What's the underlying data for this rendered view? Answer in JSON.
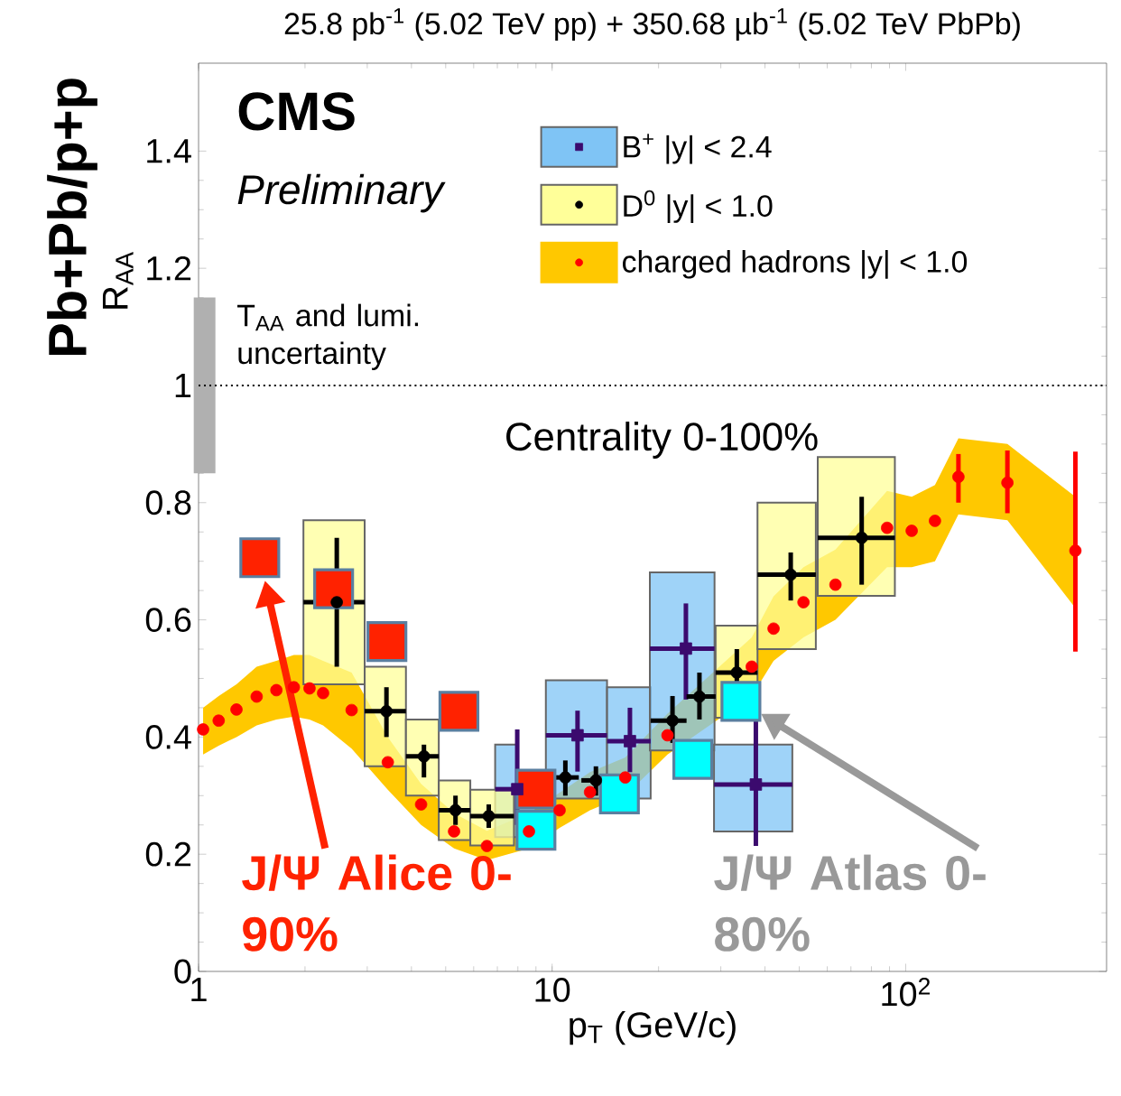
{
  "chart_data": {
    "type": "scatter",
    "title": "25.8 pb$^{-1}$ (5.02 TeV pp) + 350.68 µb$^{-1}$ (5.02 TeV PbPb)",
    "xlabel": "p$_{T}$ (GeV/c)",
    "ylabel": "R$_{AA}$",
    "annotations": [
      "CMS",
      "Preliminary",
      "Centrality 0-100%",
      "Pb+Pb/p+p",
      "T$_{AA}$ and lumi. uncertainty"
    ],
    "log": "x",
    "xlim": [
      1,
      370
    ],
    "ylim": [
      0,
      1.55
    ],
    "xticks": [
      1,
      10,
      {
        "value": 100,
        "label": "10$^{2}$"
      }
    ],
    "yticks": [
      0,
      0.2,
      0.4,
      0.6,
      0.8,
      1,
      1.2,
      1.4
    ],
    "legend": "top",
    "ref_lines": [
      {
        "axis": "y",
        "value": 1,
        "line_style": "dotted"
      }
    ],
    "series": [
      {
        "type": "bar",
        "color": "#b0b0b0",
        "x": [
          1.04
        ],
        "base": [
          0.85
        ],
        "values": [
          0.3
        ]
      },
      {
        "type": "bar",
        "color": "#7fc4f5",
        "x": [
          7.97,
          11.8,
          16.6,
          23.9,
          37.7
        ],
        "base": [
          0.229,
          0.295,
          0.295,
          0.377,
          0.239
        ],
        "values": [
          0.158,
          0.202,
          0.19,
          0.304,
          0.148
        ]
      },
      {
        "type": "bar",
        "color": "#ffff99",
        "x": [
          2.46,
          3.4,
          4.34,
          5.33,
          6.62,
          10.9,
          13.3,
          21.9,
          26.1,
          33.3,
          47.3,
          75.1
        ],
        "base": [
          0.49,
          0.35,
          0.3,
          0.224,
          0.215,
          null,
          null,
          null,
          null,
          0.433,
          0.55,
          0.641
        ],
        "values": [
          0.28,
          0.17,
          0.13,
          0.102,
          0.095,
          null,
          null,
          null,
          null,
          0.157,
          0.25,
          0.237
        ]
      },
      {
        "name": "B$^{+}$ |y| < 2.4",
        "marker": "square",
        "color": "#3b0a6e",
        "x": [
          7.97,
          11.8,
          16.6,
          23.9,
          37.7
        ],
        "values": [
          0.311,
          0.403,
          0.393,
          0.551,
          0.319
        ],
        "errors": [
          [
            0.25,
            0.413
          ],
          [
            0.341,
            0.445
          ],
          [
            0.34,
            0.45
          ],
          [
            0.464,
            0.628
          ],
          [
            0.214,
            0.439
          ]
        ],
        "xerrors": [
          [
            6.9,
            7.97
          ],
          [
            9.6,
            14.3
          ],
          [
            14.3,
            19.0
          ],
          [
            18.9,
            28.8
          ],
          [
            28.7,
            47.8
          ]
        ]
      },
      {
        "name": "D$^{0}$ |y| < 1.0",
        "marker": "circle",
        "color": "#000000",
        "x": [
          2.46,
          3.4,
          4.34,
          5.33,
          6.62,
          10.9,
          13.3,
          21.9,
          26.1,
          33.3,
          47.3,
          75.1
        ],
        "values": [
          0.63,
          0.444,
          0.367,
          0.275,
          0.265,
          0.331,
          0.326,
          0.428,
          0.469,
          0.51,
          0.677,
          0.74
        ],
        "errors": [
          [
            0.52,
            0.74
          ],
          [
            0.4,
            0.485
          ],
          [
            0.331,
            0.387
          ],
          [
            0.25,
            0.3
          ],
          [
            0.245,
            0.285
          ],
          [
            0.3,
            0.36
          ],
          [
            0.3,
            0.35
          ],
          [
            0.39,
            0.47
          ],
          [
            0.43,
            0.51
          ],
          [
            0.49,
            0.55
          ],
          [
            0.633,
            0.715
          ],
          [
            0.66,
            0.81
          ]
        ],
        "xerrors": [
          [
            1.98,
            2.95
          ],
          [
            2.95,
            3.86
          ],
          [
            3.86,
            4.78
          ],
          [
            4.78,
            5.87
          ],
          [
            5.87,
            7.8
          ],
          [
            10,
            11.9
          ],
          [
            12.1,
            14.5
          ],
          [
            19,
            24
          ],
          [
            24,
            29
          ],
          [
            29,
            38.1
          ],
          [
            38.1,
            55.7
          ],
          [
            56.4,
            93.2
          ]
        ]
      },
      {
        "name": "charged hadrons |y| < 1.0",
        "marker": "circle",
        "color": "#ff0000",
        "x": [
          1.03,
          1.14,
          1.28,
          1.46,
          1.66,
          1.86,
          2.06,
          2.25,
          2.71,
          3.43,
          4.26,
          5.28,
          6.54,
          8.6,
          10.5,
          12.8,
          16.1,
          21.2,
          36.7,
          42.3,
          51.4,
          63.3,
          88.6,
          104,
          121,
          141,
          194,
          302
        ],
        "values": [
          0.413,
          0.428,
          0.447,
          0.469,
          0.48,
          0.485,
          0.483,
          0.475,
          0.446,
          0.357,
          0.285,
          0.239,
          0.214,
          0.239,
          0.275,
          0.306,
          0.331,
          0.403,
          0.52,
          0.585,
          0.63,
          0.66,
          0.757,
          0.752,
          0.769,
          0.844,
          0.834,
          0.718
        ],
        "errors": [
          null,
          null,
          null,
          null,
          null,
          null,
          null,
          null,
          null,
          null,
          null,
          null,
          null,
          null,
          null,
          null,
          null,
          null,
          null,
          null,
          null,
          null,
          null,
          null,
          null,
          [
            0.8,
            0.883
          ],
          [
            0.782,
            0.889
          ],
          [
            0.546,
            0.887
          ]
        ],
        "lower": [
          0.37,
          0.385,
          0.4,
          0.42,
          0.43,
          0.435,
          0.43,
          0.42,
          0.38,
          0.31,
          0.25,
          0.21,
          0.19,
          0.21,
          0.245,
          0.275,
          0.3,
          0.37,
          0.47,
          0.53,
          0.57,
          0.6,
          0.69,
          0.69,
          0.7,
          0.78,
          0.77,
          0.62
        ],
        "upper": [
          0.45,
          0.47,
          0.49,
          0.52,
          0.53,
          0.54,
          0.54,
          0.53,
          0.51,
          0.4,
          0.32,
          0.27,
          0.24,
          0.27,
          0.305,
          0.34,
          0.365,
          0.44,
          0.57,
          0.64,
          0.69,
          0.72,
          0.82,
          0.81,
          0.83,
          0.91,
          0.9,
          0.81
        ]
      },
      {
        "name": "J/Ψ Alice 0-90%",
        "marker": "square",
        "color": "#ff2200",
        "x": [
          1.49,
          2.41,
          3.41,
          5.45,
          9.0
        ],
        "values": [
          0.706,
          0.653,
          0.563,
          0.444,
          0.311
        ]
      },
      {
        "name": "J/Ψ Atlas 0-80%",
        "marker": "square",
        "color": "#00ffff",
        "x": [
          9.0,
          15.5,
          25.0,
          34.2
        ],
        "values": [
          0.241,
          0.303,
          0.362,
          0.461
        ]
      }
    ]
  }
}
